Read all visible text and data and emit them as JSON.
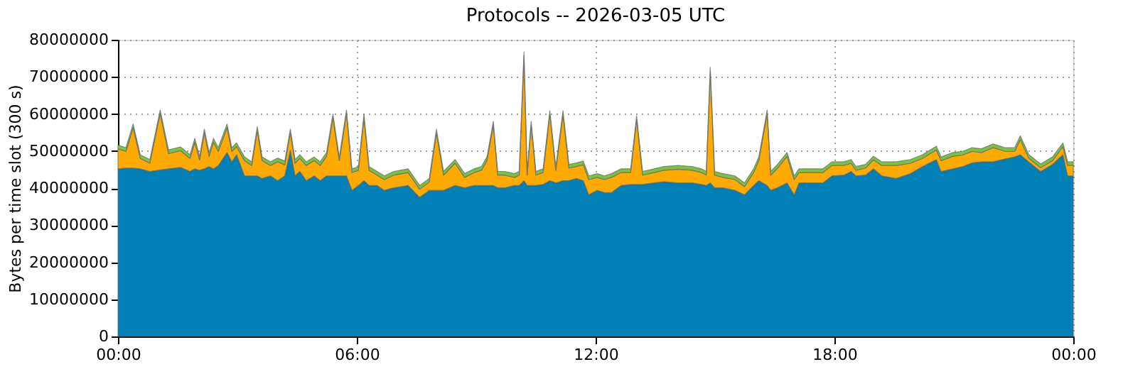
{
  "chart_data": {
    "type": "area",
    "stacked": true,
    "title": "Protocols -- 2026-03-05 UTC",
    "ylabel": "Bytes per time slot (300 s)",
    "x": [
      0.0,
      0.2,
      0.38,
      0.56,
      0.8,
      1.06,
      1.27,
      1.57,
      1.81,
      1.93,
      2.05,
      2.17,
      2.29,
      2.4,
      2.52,
      2.74,
      2.86,
      2.98,
      3.18,
      3.36,
      3.5,
      3.62,
      3.83,
      4.01,
      4.19,
      4.33,
      4.45,
      4.57,
      4.73,
      4.93,
      5.08,
      5.24,
      5.4,
      5.56,
      5.74,
      5.88,
      6.04,
      6.18,
      6.31,
      6.51,
      6.69,
      6.93,
      7.29,
      7.58,
      7.82,
      8.0,
      8.18,
      8.47,
      8.71,
      8.95,
      9.13,
      9.27,
      9.43,
      9.54,
      9.72,
      9.96,
      10.08,
      10.2,
      10.28,
      10.38,
      10.5,
      10.68,
      10.85,
      11.0,
      11.18,
      11.33,
      11.51,
      11.69,
      11.83,
      12.04,
      12.22,
      12.4,
      12.64,
      12.88,
      13.03,
      13.18,
      13.47,
      13.71,
      14.07,
      14.43,
      14.66,
      14.78,
      14.88,
      14.99,
      15.2,
      15.5,
      15.74,
      15.97,
      16.1,
      16.31,
      16.4,
      16.57,
      16.81,
      16.99,
      17.11,
      17.41,
      17.71,
      17.94,
      18.24,
      18.42,
      18.54,
      18.78,
      18.98,
      19.19,
      19.55,
      19.91,
      20.21,
      20.56,
      20.68,
      20.98,
      21.22,
      21.46,
      21.69,
      21.99,
      22.29,
      22.53,
      22.67,
      22.88,
      23.18,
      23.48,
      23.74,
      23.86,
      23.95,
      24.0
    ],
    "series": [
      {
        "color": "#0080b4",
        "values": [
          45200000,
          45400000,
          45400000,
          45200000,
          44500000,
          44900000,
          45200000,
          45600000,
          44500000,
          45200000,
          44800000,
          45200000,
          45800000,
          45200000,
          46100000,
          49600000,
          47100000,
          49000000,
          43300000,
          43300000,
          43300000,
          42600000,
          43300000,
          42000000,
          43300000,
          50200000,
          43300000,
          44500000,
          42000000,
          43300000,
          42000000,
          43300000,
          43300000,
          43300000,
          43300000,
          39400000,
          40700000,
          42000000,
          40700000,
          40700000,
          39400000,
          40100000,
          40700000,
          37500000,
          39400000,
          39400000,
          39400000,
          40700000,
          40100000,
          40700000,
          40700000,
          40700000,
          40700000,
          40100000,
          40100000,
          40700000,
          40700000,
          42000000,
          40700000,
          40700000,
          40700000,
          41000000,
          42000000,
          41400000,
          42000000,
          42000000,
          42600000,
          42000000,
          38200000,
          39400000,
          38800000,
          38800000,
          40700000,
          41000000,
          41000000,
          41000000,
          41400000,
          41700000,
          41400000,
          41400000,
          41000000,
          40700000,
          41400000,
          40100000,
          40100000,
          39400000,
          38200000,
          40700000,
          42000000,
          40700000,
          39400000,
          40100000,
          41400000,
          38200000,
          41400000,
          41400000,
          41400000,
          43300000,
          43500000,
          44500000,
          43300000,
          43500000,
          45200000,
          43300000,
          42600000,
          43900000,
          45800000,
          47700000,
          44500000,
          45200000,
          45800000,
          46800000,
          47100000,
          47100000,
          47900000,
          48400000,
          49000000,
          47100000,
          44500000,
          46400000,
          49000000,
          43300000,
          43300000,
          43300000
        ]
      },
      {
        "color": "#ffaa00",
        "values": [
          5400000,
          4500000,
          10900000,
          2800000,
          2200000,
          15200000,
          4100000,
          4500000,
          3500000,
          7200000,
          2800000,
          9700000,
          2800000,
          7200000,
          3800000,
          6700000,
          2800000,
          2200000,
          4100000,
          2800000,
          12300000,
          4800000,
          2800000,
          5100000,
          3000000,
          4700000,
          3400000,
          3500000,
          4100000,
          4100000,
          4100000,
          5300000,
          15700000,
          4100000,
          16800000,
          4800000,
          4100000,
          17000000,
          4100000,
          2800000,
          2900000,
          3400000,
          3500000,
          2200000,
          2200000,
          15500000,
          4100000,
          6000000,
          2800000,
          3500000,
          4100000,
          6700000,
          16300000,
          3400000,
          3400000,
          2200000,
          2800000,
          33700000,
          2800000,
          16300000,
          2800000,
          3200000,
          17900000,
          3400000,
          17900000,
          3400000,
          3200000,
          4300000,
          4100000,
          3500000,
          3500000,
          4100000,
          3500000,
          3200000,
          17500000,
          2500000,
          2800000,
          3100000,
          3700000,
          3400000,
          3200000,
          2800000,
          30200000,
          3400000,
          2800000,
          2900000,
          2200000,
          3500000,
          5400000,
          19400000,
          4100000,
          5300000,
          7200000,
          4100000,
          2800000,
          2800000,
          2800000,
          2800000,
          2600000,
          2200000,
          1500000,
          1900000,
          2400000,
          2800000,
          3500000,
          2800000,
          2200000,
          2600000,
          2900000,
          3400000,
          3100000,
          3100000,
          2500000,
          3800000,
          2000000,
          1500000,
          4100000,
          1000000,
          1000000,
          1000000,
          2200000,
          2800000,
          2800000,
          2800000
        ]
      },
      {
        "color": "#7cc242",
        "values": [
          1000000,
          1000000,
          1000000,
          1000000,
          1000000,
          1000000,
          1000000,
          1000000,
          1000000,
          1000000,
          1000000,
          1000000,
          1000000,
          1000000,
          1000000,
          1000000,
          1000000,
          1000000,
          1000000,
          1000000,
          1000000,
          1000000,
          1000000,
          1000000,
          1000000,
          1000000,
          1000000,
          1000000,
          1000000,
          1000000,
          1000000,
          1000000,
          1000000,
          1000000,
          1000000,
          1000000,
          1000000,
          1000000,
          1000000,
          1000000,
          1000000,
          1000000,
          1000000,
          1000000,
          1000000,
          1000000,
          1000000,
          1000000,
          1000000,
          1000000,
          1000000,
          1000000,
          1000000,
          1000000,
          1000000,
          1000000,
          1000000,
          1000000,
          1000000,
          1000000,
          1000000,
          1000000,
          1000000,
          1000000,
          1000000,
          1000000,
          1000000,
          1000000,
          1000000,
          1000000,
          1000000,
          1000000,
          1000000,
          1000000,
          1000000,
          1000000,
          1000000,
          1000000,
          1000000,
          1000000,
          1000000,
          1000000,
          1000000,
          1000000,
          1000000,
          1000000,
          1000000,
          1000000,
          1000000,
          1000000,
          1000000,
          1000000,
          1000000,
          1000000,
          1000000,
          1000000,
          1000000,
          1000000,
          1000000,
          1000000,
          1000000,
          1000000,
          1000000,
          1000000,
          1000000,
          1000000,
          1000000,
          1000000,
          1000000,
          1000000,
          1000000,
          1000000,
          1000000,
          1000000,
          1000000,
          1000000,
          1000000,
          1000000,
          1000000,
          1000000,
          1000000,
          1000000,
          1000000,
          1000000
        ]
      }
    ],
    "xlim": [
      0,
      24
    ],
    "xticks": [
      {
        "value": 0,
        "label": "00:00"
      },
      {
        "value": 6,
        "label": "06:00"
      },
      {
        "value": 12,
        "label": "12:00"
      },
      {
        "value": 18,
        "label": "18:00"
      },
      {
        "value": 24,
        "label": "00:00"
      }
    ],
    "ylim": [
      0,
      80000000
    ],
    "yticks": [
      0,
      10000000,
      20000000,
      30000000,
      40000000,
      50000000,
      60000000,
      70000000,
      80000000
    ],
    "grid": true,
    "legend": false
  }
}
